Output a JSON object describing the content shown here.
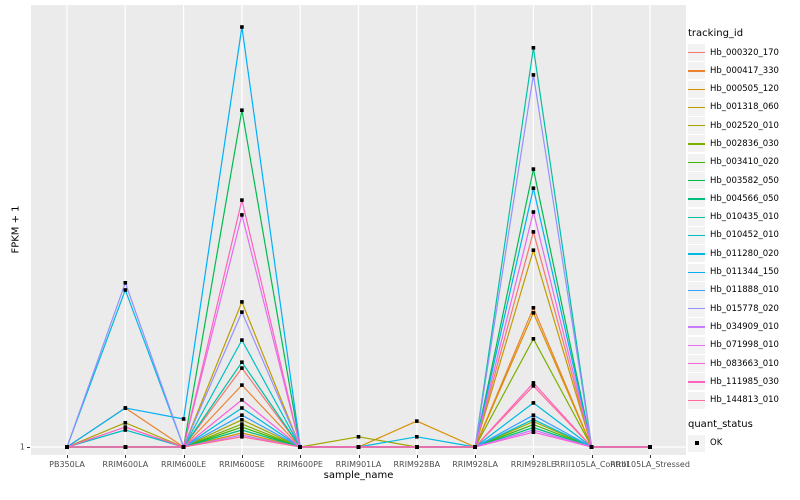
{
  "figure": {
    "y_axis_title": "FPKM + 1",
    "x_axis_title": "sample_name",
    "y_tick_label": "1"
  },
  "legend": {
    "tracking_title": "tracking_id",
    "quant_title": "quant_status",
    "quant_status": {
      "label": "OK",
      "marker_icon": "black-square"
    }
  },
  "style_colors": {
    "panel_background": "#EBEBEB",
    "gridline": "#FFFFFF",
    "legend_key_background": "#F2F2F2",
    "tick_label": "#4D4D4D",
    "point_marker": "#000000"
  },
  "chart_data": {
    "type": "line",
    "title": "",
    "xlabel": "sample_name",
    "ylabel": "FPKM + 1",
    "x": [
      "PB350LA",
      "RRIM600LA",
      "RRIM600LE",
      "RRIM600SE",
      "RRIM600PE",
      "RRIM901LA",
      "RRIM928BA",
      "RRIM928LA",
      "RRIM928LE",
      "RRII105LA_Control",
      "RRII105LA_Stressed"
    ],
    "y_axis": {
      "tick_labels": [
        "1"
      ],
      "baseline_value": 1,
      "ylim": [
        1,
        103
      ],
      "scale_note": "linear; only the value 1 is labeled on the axis; series values are relative estimates with tallest peak = 100"
    },
    "grid": "white vertical gridline per category and one horizontal gridline at y=1 on gray panel",
    "legend_position": "right",
    "point_marker": "black square (quant_status OK) at every vertex",
    "quant_status_of_all_points": "OK",
    "series": [
      {
        "name": "Hb_000320_170",
        "color": "#F8766D",
        "values": [
          1,
          1,
          1,
          19.6,
          1,
          1,
          1,
          1,
          51.7,
          1,
          1
        ]
      },
      {
        "name": "Hb_000417_330",
        "color": "#EA8331",
        "values": [
          1,
          10.2,
          1,
          15.6,
          1,
          1,
          1,
          1,
          33.8,
          1,
          1
        ]
      },
      {
        "name": "Hb_000505_120",
        "color": "#D89000",
        "values": [
          1,
          1,
          1,
          4.3,
          1,
          1,
          7.1,
          1,
          32.6,
          1,
          1
        ]
      },
      {
        "name": "Hb_001318_060",
        "color": "#C09B00",
        "values": [
          1,
          1,
          1,
          35.2,
          1,
          1,
          1,
          1,
          47.4,
          1,
          1
        ]
      },
      {
        "name": "Hb_002520_010",
        "color": "#A3A500",
        "values": [
          1,
          6.7,
          1,
          7.4,
          1,
          3.4,
          1,
          1,
          7.0,
          1,
          1
        ]
      },
      {
        "name": "Hb_002836_030",
        "color": "#7CAE00",
        "values": [
          1,
          1,
          1,
          6.4,
          1,
          1,
          1,
          1,
          26.5,
          1,
          1
        ]
      },
      {
        "name": "Hb_003410_020",
        "color": "#39B600",
        "values": [
          1,
          1,
          1,
          5.7,
          1,
          1,
          1,
          1,
          6.3,
          1,
          1
        ]
      },
      {
        "name": "Hb_003582_050",
        "color": "#00BB4E",
        "values": [
          1,
          1,
          1,
          80.4,
          1,
          1,
          1,
          1,
          66.5,
          1,
          1
        ]
      },
      {
        "name": "Hb_004566_050",
        "color": "#00BF7D",
        "values": [
          1,
          1,
          1,
          5.0,
          1,
          1,
          1,
          1,
          5.6,
          1,
          1
        ]
      },
      {
        "name": "Hb_010435_010",
        "color": "#00C1A3",
        "values": [
          1,
          1,
          1,
          21.0,
          1,
          1,
          1,
          1,
          95.1,
          1,
          1
        ]
      },
      {
        "name": "Hb_010452_010",
        "color": "#00BFC4",
        "values": [
          1,
          5.0,
          1,
          26.2,
          1,
          1,
          1,
          1,
          7.5,
          1,
          1
        ]
      },
      {
        "name": "Hb_011280_020",
        "color": "#00BAE0",
        "values": [
          1,
          38.0,
          1,
          10.2,
          1,
          1,
          3.4,
          1,
          11.4,
          1,
          1
        ]
      },
      {
        "name": "Hb_011344_150",
        "color": "#00B0F6",
        "values": [
          1,
          10.2,
          7.6,
          100,
          1,
          1,
          1,
          1,
          62.0,
          1,
          1
        ]
      },
      {
        "name": "Hb_011888_010",
        "color": "#35A2FF",
        "values": [
          1,
          1,
          1,
          8.5,
          1,
          1,
          1,
          1,
          8.5,
          1,
          1
        ]
      },
      {
        "name": "Hb_015778_020",
        "color": "#9590FF",
        "values": [
          1,
          39.7,
          1,
          32.8,
          1,
          1,
          1,
          1,
          88.7,
          1,
          1
        ]
      },
      {
        "name": "Hb_034909_010",
        "color": "#C77CFF",
        "values": [
          1,
          1,
          1,
          3.8,
          1,
          1,
          1,
          1,
          5.0,
          1,
          1
        ]
      },
      {
        "name": "Hb_071998_010",
        "color": "#E76BF3",
        "values": [
          1,
          1,
          1,
          55.7,
          1,
          1,
          1,
          1,
          56.4,
          1,
          1
        ]
      },
      {
        "name": "Hb_083663_010",
        "color": "#FA62DB",
        "values": [
          1,
          1,
          1,
          12.1,
          1,
          1,
          1,
          1,
          4.5,
          1,
          1
        ]
      },
      {
        "name": "Hb_111985_030",
        "color": "#FF62BC",
        "values": [
          1,
          5.7,
          1,
          59.2,
          1,
          1,
          1,
          1,
          16.1,
          1,
          1
        ]
      },
      {
        "name": "Hb_144813_010",
        "color": "#FF6A98",
        "values": [
          1,
          1,
          1,
          3.4,
          1,
          1,
          1,
          1,
          15.4,
          1,
          1
        ]
      }
    ]
  }
}
